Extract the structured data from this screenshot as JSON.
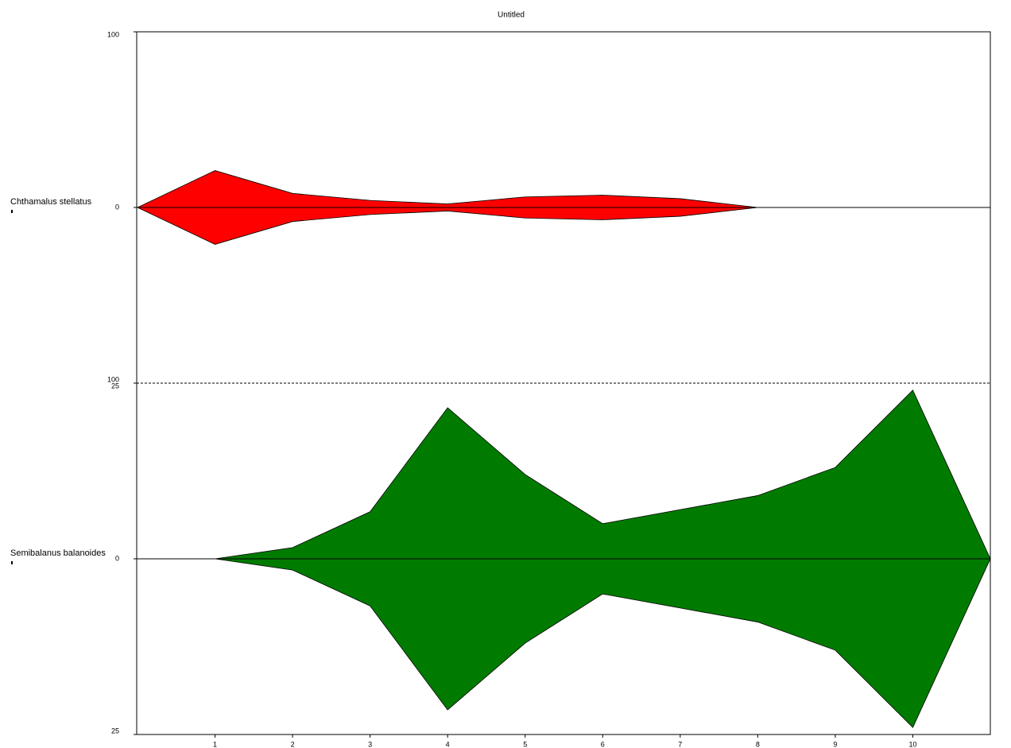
{
  "chart_data": {
    "type": "kite",
    "title": "Untitled",
    "x": [
      0,
      1,
      2,
      3,
      4,
      5,
      6,
      7,
      8,
      9,
      10,
      11
    ],
    "xlim": [
      0,
      11
    ],
    "xticks": [
      1,
      2,
      3,
      4,
      5,
      6,
      7,
      8,
      9,
      10
    ],
    "panels": [
      {
        "name": "Chthamalus stellatus",
        "color": "#ff0000",
        "values": [
          0,
          21,
          8,
          4,
          2,
          6,
          7,
          5,
          0,
          null,
          null,
          null
        ],
        "ylim": [
          -100,
          100
        ],
        "yticks": [
          {
            "value": -100,
            "label": "100"
          },
          0,
          100
        ]
      },
      {
        "name": "Semibalanus balanoides",
        "color": "#007b00",
        "values": [
          null,
          0,
          1.6,
          6.7,
          21.5,
          12,
          5,
          7,
          9,
          13,
          24,
          0
        ],
        "ylim": [
          -25,
          25
        ],
        "yticks": [
          {
            "value": -25,
            "label": "25"
          },
          0,
          25
        ]
      }
    ]
  }
}
